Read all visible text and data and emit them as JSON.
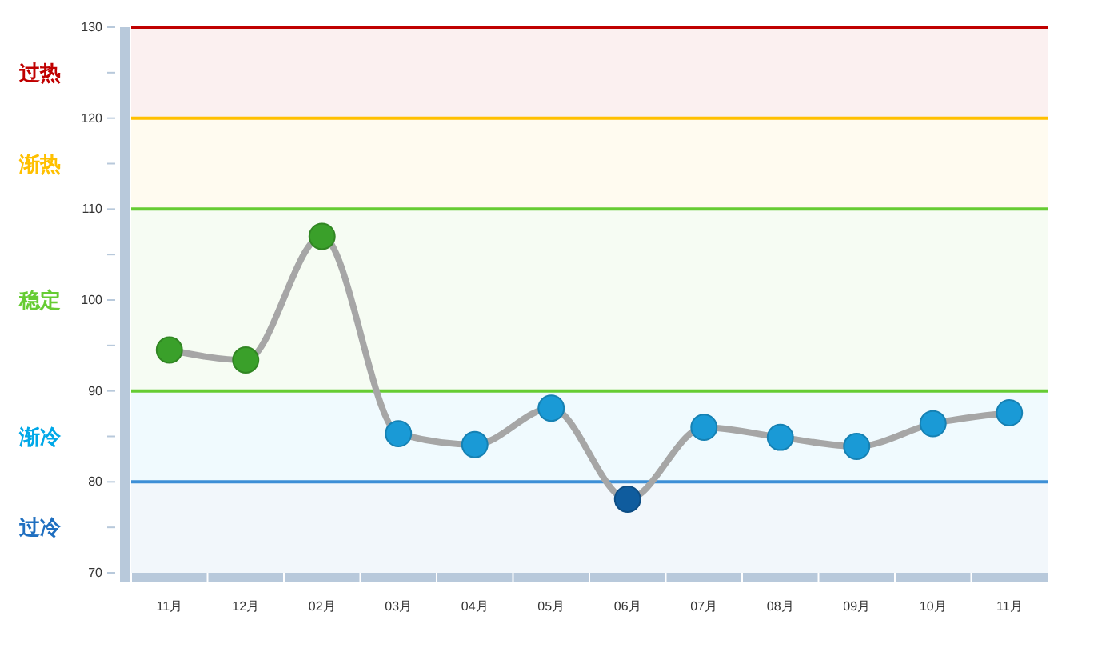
{
  "chart_data": {
    "type": "line",
    "categories": [
      "11月",
      "12月",
      "02月",
      "03月",
      "04月",
      "05月",
      "06月",
      "07月",
      "08月",
      "09月",
      "10月",
      "11月"
    ],
    "series": [
      {
        "color": "#a6a6a6",
        "values": [
          94.5,
          93.4,
          107.0,
          85.3,
          84.1,
          88.1,
          78.1,
          86.0,
          84.9,
          83.9,
          86.4,
          87.6
        ],
        "colors": [
          "#3aa02a",
          "#3aa02a",
          "#3aa02a",
          "#1a9ad6",
          "#1a9ad6",
          "#1a9ad6",
          "#0f5c9e",
          "#1a9ad6",
          "#1a9ad6",
          "#1a9ad6",
          "#1a9ad6",
          "#1a9ad6"
        ]
      }
    ],
    "ylim": [
      70,
      130
    ],
    "yticks": [
      70,
      {
        "value": 75,
        "label": null
      },
      80,
      {
        "value": 85,
        "label": null
      },
      90,
      {
        "value": 95,
        "label": null
      },
      100,
      {
        "value": 105,
        "label": null
      },
      110,
      {
        "value": 115,
        "label": null
      },
      120,
      {
        "value": 125,
        "label": null
      },
      130
    ],
    "marker": "circle",
    "line_style": "solid",
    "grid": false,
    "ref_lines": [
      {
        "axis": "y",
        "value": 130,
        "color": "#c00000"
      },
      {
        "axis": "y",
        "value": 120,
        "color": "#ffc000"
      },
      {
        "axis": "y",
        "value": 110,
        "color": "#66cc33"
      },
      {
        "axis": "y",
        "value": 90,
        "color": "#66cc33"
      },
      {
        "axis": "y",
        "value": 80,
        "color": "#3d8fd6"
      }
    ],
    "bands": [
      {
        "axis": "y",
        "from": 120,
        "to": 130,
        "label": "过热",
        "color": "#c00000"
      },
      {
        "axis": "y",
        "from": 110,
        "to": 120,
        "label": "渐热",
        "color": "#ffc000"
      },
      {
        "axis": "y",
        "from": 90,
        "to": 110,
        "label": "稳定",
        "color": "#66cc33"
      },
      {
        "axis": "y",
        "from": 80,
        "to": 90,
        "label": "渐冷",
        "color": "#00a8e8"
      },
      {
        "axis": "y",
        "from": 70,
        "to": 80,
        "label": "过冷",
        "color": "#1f6fc0"
      }
    ]
  }
}
